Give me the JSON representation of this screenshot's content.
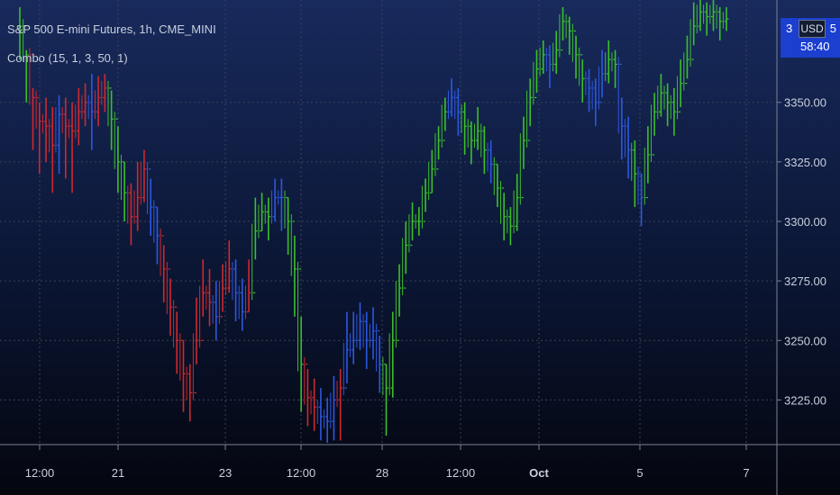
{
  "legend": {
    "symbol_line": "S&P 500 E-mini Futures, 1h, CME_MINI",
    "indicator_line": "Combo (15, 1, 3, 50, 1)"
  },
  "price_scale": {
    "currency_button": "USD",
    "last_price_left": "3",
    "last_price_right": "5",
    "countdown": "58:40"
  },
  "colors": {
    "up": "#3cbf2a",
    "down": "#d0282e",
    "neutral": "#2d57e0",
    "grid": "#3a4257",
    "axis_text": "#c9cfdc",
    "price_tag": "#1c3fd0"
  },
  "chart_data": {
    "type": "bar",
    "title": "S&P 500 E-mini Futures, 1h, CME_MINI",
    "indicator": "Combo (15, 1, 3, 50, 1)",
    "y_ticks": [
      "3350.00",
      "3325.00",
      "3300.00",
      "3275.00",
      "3250.00",
      "3225.00"
    ],
    "x_ticks": [
      "12:00",
      "21",
      "23",
      "12:00",
      "28",
      "12:00",
      "Oct",
      "5",
      "7"
    ],
    "ylim": [
      3207,
      3393
    ],
    "grid": true,
    "series": [
      {
        "values": [
          [
            3382,
            3390,
            3368,
            "g"
          ],
          [
            3370,
            3372,
            3350,
            "g"
          ],
          [
            3352,
            3356,
            3330,
            "r"
          ],
          [
            3342,
            3350,
            3320,
            "r"
          ],
          [
            3340,
            3352,
            3325,
            "r"
          ],
          [
            3332,
            3348,
            3312,
            "r"
          ],
          [
            3345,
            3353,
            3320,
            "b"
          ],
          [
            3340,
            3352,
            3318,
            "r"
          ],
          [
            3338,
            3350,
            3312,
            "r"
          ],
          [
            3346,
            3356,
            3332,
            "r"
          ],
          [
            3350,
            3358,
            3340,
            "r"
          ],
          [
            3346,
            3362,
            3330,
            "b"
          ],
          [
            3352,
            3361,
            3340,
            "r"
          ],
          [
            3356,
            3362,
            3346,
            "r"
          ],
          [
            3343,
            3355,
            3330,
            "g"
          ],
          [
            3325,
            3340,
            3312,
            "g"
          ],
          [
            3312,
            3325,
            3300,
            "g"
          ],
          [
            3302,
            3316,
            3290,
            "r"
          ],
          [
            3310,
            3325,
            3296,
            "r"
          ],
          [
            3322,
            3330,
            3308,
            "r"
          ],
          [
            3306,
            3318,
            3294,
            "b"
          ],
          [
            3294,
            3306,
            3282,
            "b"
          ],
          [
            3280,
            3290,
            3266,
            "r"
          ],
          [
            3264,
            3276,
            3252,
            "r"
          ],
          [
            3250,
            3262,
            3236,
            "r"
          ],
          [
            3236,
            3250,
            3220,
            "r"
          ],
          [
            3228,
            3240,
            3216,
            "r"
          ],
          [
            3250,
            3268,
            3240,
            "r"
          ],
          [
            3270,
            3284,
            3260,
            "r"
          ],
          [
            3266,
            3280,
            3256,
            "r"
          ],
          [
            3260,
            3275,
            3250,
            "b"
          ],
          [
            3272,
            3282,
            3262,
            "r"
          ],
          [
            3280,
            3292,
            3270,
            "r"
          ],
          [
            3270,
            3284,
            3258,
            "b"
          ],
          [
            3262,
            3276,
            3254,
            "b"
          ],
          [
            3270,
            3284,
            3262,
            "r"
          ],
          [
            3296,
            3310,
            3284,
            "g"
          ],
          [
            3304,
            3312,
            3296,
            "g"
          ],
          [
            3302,
            3310,
            3292,
            "g"
          ],
          [
            3310,
            3318,
            3300,
            "b"
          ],
          [
            3310,
            3318,
            3296,
            "b"
          ],
          [
            3300,
            3310,
            3286,
            "g"
          ],
          [
            3280,
            3294,
            3260,
            "g"
          ],
          [
            3240,
            3260,
            3220,
            "g"
          ],
          [
            3226,
            3238,
            3214,
            "r"
          ],
          [
            3222,
            3234,
            3212,
            "r"
          ],
          [
            3218,
            3230,
            3208,
            "b"
          ],
          [
            3216,
            3226,
            3207,
            "b"
          ],
          [
            3225,
            3235,
            3208,
            "b"
          ],
          [
            3230,
            3238,
            3208,
            "r"
          ],
          [
            3246,
            3262,
            3232,
            "b"
          ],
          [
            3250,
            3262,
            3240,
            "b"
          ],
          [
            3258,
            3266,
            3246,
            "b"
          ],
          [
            3250,
            3262,
            3238,
            "b"
          ],
          [
            3254,
            3264,
            3242,
            "b"
          ],
          [
            3240,
            3252,
            3228,
            "b"
          ],
          [
            3230,
            3240,
            3210,
            "g"
          ],
          [
            3250,
            3262,
            3226,
            "g"
          ],
          [
            3272,
            3282,
            3260,
            "g"
          ],
          [
            3290,
            3300,
            3278,
            "g"
          ],
          [
            3300,
            3308,
            3292,
            "g"
          ],
          [
            3300,
            3306,
            3294,
            "g"
          ],
          [
            3312,
            3318,
            3304,
            "g"
          ],
          [
            3322,
            3330,
            3312,
            "g"
          ],
          [
            3334,
            3340,
            3326,
            "g"
          ],
          [
            3346,
            3352,
            3338,
            "g"
          ],
          [
            3352,
            3360,
            3344,
            "b"
          ],
          [
            3346,
            3356,
            3336,
            "b"
          ],
          [
            3340,
            3350,
            3328,
            "g"
          ],
          [
            3334,
            3342,
            3324,
            "g"
          ],
          [
            3338,
            3348,
            3330,
            "g"
          ],
          [
            3330,
            3340,
            3320,
            "g"
          ],
          [
            3324,
            3334,
            3316,
            "b"
          ],
          [
            3314,
            3324,
            3306,
            "g"
          ],
          [
            3302,
            3312,
            3292,
            "g"
          ],
          [
            3298,
            3306,
            3290,
            "g"
          ],
          [
            3310,
            3320,
            3296,
            "g"
          ],
          [
            3334,
            3344,
            3322,
            "g"
          ],
          [
            3352,
            3360,
            3340,
            "g"
          ],
          [
            3364,
            3372,
            3354,
            "g"
          ],
          [
            3370,
            3376,
            3362,
            "g"
          ],
          [
            3366,
            3374,
            3356,
            "b"
          ],
          [
            3372,
            3380,
            3362,
            "g"
          ],
          [
            3384,
            3390,
            3376,
            "g"
          ],
          [
            3380,
            3386,
            3370,
            "g"
          ],
          [
            3370,
            3378,
            3360,
            "g"
          ],
          [
            3360,
            3368,
            3350,
            "g"
          ],
          [
            3356,
            3364,
            3346,
            "b"
          ],
          [
            3350,
            3360,
            3340,
            "b"
          ],
          [
            3362,
            3372,
            3352,
            "b"
          ],
          [
            3368,
            3376,
            3358,
            "g"
          ],
          [
            3366,
            3372,
            3356,
            "g"
          ],
          [
            3340,
            3352,
            3326,
            "b"
          ],
          [
            3330,
            3344,
            3318,
            "b"
          ],
          [
            3320,
            3334,
            3306,
            "g"
          ],
          [
            3310,
            3320,
            3298,
            "b"
          ],
          [
            3328,
            3340,
            3316,
            "g"
          ],
          [
            3346,
            3354,
            3336,
            "g"
          ],
          [
            3354,
            3362,
            3344,
            "g"
          ],
          [
            3350,
            3358,
            3340,
            "g"
          ],
          [
            3346,
            3356,
            3336,
            "g"
          ],
          [
            3358,
            3368,
            3348,
            "g"
          ],
          [
            3368,
            3378,
            3360,
            "g"
          ],
          [
            3382,
            3392,
            3374,
            "g"
          ],
          [
            3388,
            3393,
            3380,
            "g"
          ],
          [
            3386,
            3392,
            3378,
            "g"
          ],
          [
            3388,
            3393,
            3380,
            "g"
          ],
          [
            3384,
            3390,
            3376,
            "g"
          ],
          [
            3385,
            3390,
            3380,
            "g"
          ]
        ]
      }
    ]
  }
}
